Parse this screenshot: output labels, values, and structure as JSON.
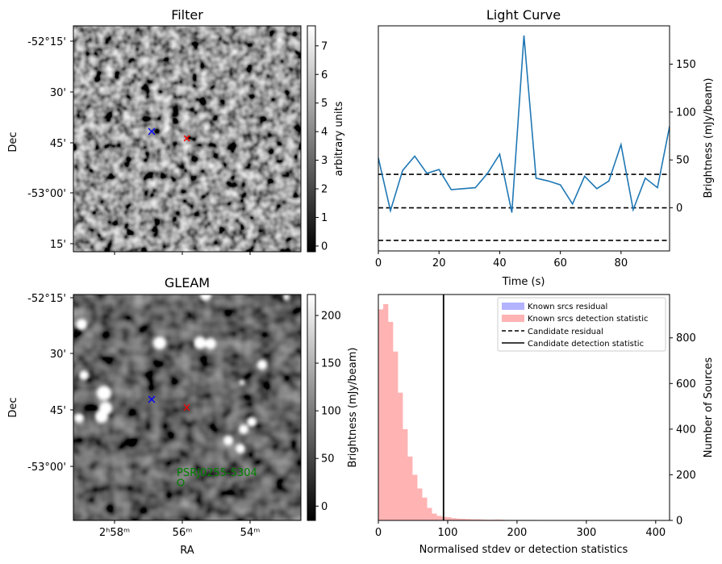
{
  "colors": {
    "line": "#1f77b4",
    "known_residual": "#b3b3ff",
    "known_detection": "#ffb3b3",
    "red_marker": "#ff0000",
    "blue_marker": "#0000ff",
    "pulsar": "#008000"
  },
  "chart_data": [
    {
      "type": "image",
      "title": "Filter",
      "ylabel": "Dec",
      "ytick_labels": [
        "-52°15'",
        "30'",
        "45'",
        "-53°00'",
        "15'"
      ],
      "colorbar": {
        "label": "arbitrary units",
        "range": [
          -0.2,
          7.7
        ],
        "ticks": [
          0,
          1,
          2,
          3,
          4,
          5,
          6,
          7
        ],
        "tick_labels": [
          "0",
          "1",
          "2",
          "3",
          "4",
          "5",
          "6",
          "7"
        ]
      }
    },
    {
      "type": "line",
      "title": "Light Curve",
      "xlabel": "Time (s)",
      "ylabel": "Brightness (mJy/beam)",
      "xlim": [
        0,
        96
      ],
      "ylim": [
        -45,
        190
      ],
      "xticks": [
        0,
        20,
        40,
        60,
        80
      ],
      "yticks": [
        0,
        50,
        100,
        150
      ],
      "x": [
        0,
        4,
        8,
        12,
        16,
        20,
        24,
        28,
        32,
        36,
        40,
        44,
        48,
        52,
        56,
        60,
        64,
        68,
        72,
        76,
        80,
        84,
        88,
        92,
        96
      ],
      "y": [
        52,
        -3,
        39,
        54,
        36,
        40,
        19,
        20,
        21,
        36,
        56,
        -5,
        180,
        31,
        28,
        24,
        4,
        33,
        20,
        28,
        66,
        -2,
        31,
        21,
        85
      ],
      "hlines": [
        35,
        0,
        -34
      ]
    },
    {
      "type": "image",
      "title": "GLEAM",
      "xlabel": "RA",
      "ylabel": "Dec",
      "xtick_labels": [
        "2ʰ58ᵐ",
        "56ᵐ",
        "54ᵐ"
      ],
      "ytick_labels": [
        "-52°15'",
        "30'",
        "45'",
        "-53°00'"
      ],
      "annotation": "PSRJ0255-5304",
      "colorbar": {
        "label": "Brightness (mJy/beam)",
        "range": [
          -15,
          222
        ],
        "ticks": [
          0,
          50,
          100,
          150,
          200
        ],
        "tick_labels": [
          "0",
          "50",
          "100",
          "150",
          "200"
        ]
      }
    },
    {
      "type": "histogram",
      "xlabel": "Normalised stdev or detection statistics",
      "ylabel": "Number of Sources",
      "xlim": [
        0,
        420
      ],
      "ylim": [
        0,
        990
      ],
      "xticks": [
        0,
        100,
        200,
        300,
        400
      ],
      "yticks": [
        0,
        200,
        400,
        600,
        800
      ],
      "bin_width": 7,
      "detection_counts": [
        925,
        948,
        870,
        740,
        560,
        400,
        280,
        200,
        140,
        100,
        55,
        30,
        20,
        16,
        14,
        10,
        8,
        7,
        6,
        5,
        5,
        4,
        3,
        3,
        4,
        3,
        2,
        2,
        2,
        2,
        2,
        2,
        2,
        1,
        1,
        1,
        1,
        1,
        1,
        1,
        1,
        1,
        0,
        0,
        0,
        0,
        0,
        0,
        0,
        0,
        0,
        0,
        0,
        0,
        0,
        0,
        1,
        0
      ],
      "candidate_detection": 94,
      "legend": [
        "Known srcs residual",
        "Known srcs detection statistic",
        "Candidate residual",
        "Candidate detection statistic"
      ]
    }
  ]
}
